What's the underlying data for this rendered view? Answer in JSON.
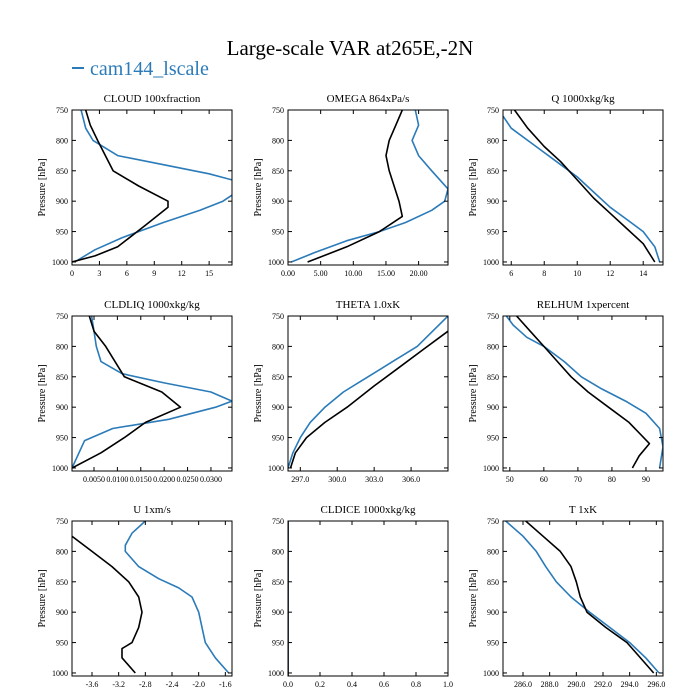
{
  "title": "Large-scale VAR at265E,-2N",
  "legend": {
    "label": "cam144_lscale",
    "color": "#2b7bb9"
  },
  "colors": {
    "cam144_lscale": "#2b7bb9",
    "black": "#000000"
  },
  "chart_data": [
    {
      "type": "line",
      "title": "CLOUD  100xfraction",
      "ylabel": "Pressure [hPa]",
      "ylim": [
        1005,
        750
      ],
      "yticks": [
        750,
        800,
        850,
        900,
        950,
        1000
      ],
      "xlim": [
        0,
        17.5
      ],
      "xticks": [
        0,
        3,
        6,
        9,
        12,
        15
      ],
      "xticklabels": [
        "0",
        "3",
        "6",
        "9",
        "12",
        "15"
      ],
      "series": [
        {
          "name": "cam144_lscale",
          "color": "#2b7bb9",
          "x": [
            1,
            1.5,
            2.3,
            5,
            10,
            15,
            17.5,
            18.5,
            16.5,
            14,
            10,
            5.5,
            2.5,
            0.3
          ],
          "y": [
            750,
            780,
            800,
            825,
            840,
            855,
            865,
            880,
            900,
            915,
            935,
            960,
            980,
            1000
          ]
        },
        {
          "name": "",
          "color": "#000000",
          "x": [
            1.5,
            2,
            2.8,
            4.5,
            7.3,
            10.5,
            10.5,
            8,
            5,
            2.5,
            0
          ],
          "y": [
            750,
            775,
            800,
            850,
            875,
            900,
            910,
            940,
            975,
            990,
            1000
          ]
        }
      ]
    },
    {
      "type": "line",
      "title": "OMEGA  864xPa/s",
      "ylabel": "Pressure [hPa]",
      "ylim": [
        1005,
        750
      ],
      "yticks": [
        750,
        800,
        850,
        900,
        950,
        1000
      ],
      "xlim": [
        0,
        24.5
      ],
      "xticks": [
        0,
        5,
        10,
        15,
        20
      ],
      "xticklabels": [
        "0.00",
        "5.00",
        "10.00",
        "15.00",
        "20.00"
      ],
      "series": [
        {
          "name": "cam144_lscale",
          "color": "#2b7bb9",
          "x": [
            19.5,
            20,
            19,
            20,
            22,
            24.5,
            24,
            22,
            18,
            14,
            9,
            4,
            0.5
          ],
          "y": [
            750,
            775,
            800,
            825,
            850,
            880,
            900,
            915,
            935,
            950,
            965,
            985,
            1000
          ]
        },
        {
          "name": "",
          "color": "#000000",
          "x": [
            17.5,
            16.5,
            15.5,
            15,
            15.5,
            17,
            17.5,
            14,
            9,
            3
          ],
          "y": [
            750,
            775,
            800,
            825,
            850,
            900,
            925,
            950,
            975,
            1000
          ]
        }
      ]
    },
    {
      "type": "line",
      "title": "Q  1000xkg/kg",
      "ylabel": "Pressure [hPa]",
      "ylim": [
        1005,
        750
      ],
      "yticks": [
        750,
        800,
        850,
        900,
        950,
        1000
      ],
      "xlim": [
        5.5,
        15.2
      ],
      "xticks": [
        6,
        8,
        10,
        12,
        14
      ],
      "xticklabels": [
        "6",
        "8",
        "10",
        "12",
        "14"
      ],
      "series": [
        {
          "name": "cam144_lscale",
          "color": "#2b7bb9",
          "x": [
            5.5,
            6,
            7,
            8,
            9,
            10,
            11,
            12,
            13,
            14,
            14.7,
            15
          ],
          "y": [
            760,
            780,
            800,
            820,
            840,
            860,
            885,
            910,
            930,
            950,
            975,
            1000
          ]
        },
        {
          "name": "",
          "color": "#000000",
          "x": [
            6.2,
            7,
            8,
            9,
            10,
            11,
            12,
            13,
            14,
            14.7
          ],
          "y": [
            750,
            780,
            810,
            835,
            865,
            895,
            920,
            945,
            970,
            1000
          ]
        }
      ]
    },
    {
      "type": "line",
      "title": "CLDLIQ  1000xkg/kg",
      "ylabel": "Pressure [hPa]",
      "ylim": [
        1005,
        750
      ],
      "yticks": [
        750,
        800,
        850,
        900,
        950,
        1000
      ],
      "xlim": [
        0.0003,
        0.0345
      ],
      "xticks": [
        0.005,
        0.01,
        0.015,
        0.02,
        0.025,
        0.03
      ],
      "xticklabels": [
        "0.0050",
        "0.0100",
        "0.0150",
        "0.0200",
        "0.0250",
        "0.0300"
      ],
      "series": [
        {
          "name": "cam144_lscale",
          "color": "#2b7bb9",
          "x": [
            0.0045,
            0.005,
            0.0055,
            0.0065,
            0.011,
            0.02,
            0.03,
            0.0345,
            0.031,
            0.021,
            0.009,
            0.003,
            0.0003
          ],
          "y": [
            750,
            775,
            800,
            825,
            845,
            860,
            875,
            890,
            900,
            920,
            935,
            955,
            1000
          ]
        },
        {
          "name": "",
          "color": "#000000",
          "x": [
            0.004,
            0.005,
            0.0075,
            0.0115,
            0.0195,
            0.0235,
            0.016,
            0.0115,
            0.0065,
            0.0003
          ],
          "y": [
            750,
            775,
            800,
            850,
            875,
            900,
            925,
            950,
            975,
            1000
          ]
        }
      ]
    },
    {
      "type": "line",
      "title": "THETA  1.0xK",
      "ylabel": "Pressure [hPa]",
      "ylim": [
        1005,
        750
      ],
      "yticks": [
        750,
        800,
        850,
        900,
        950,
        1000
      ],
      "xlim": [
        296,
        309
      ],
      "xticks": [
        297,
        300,
        303,
        306
      ],
      "xticklabels": [
        "297.0",
        "300.0",
        "303.0",
        "306.0"
      ],
      "series": [
        {
          "name": "cam144_lscale",
          "color": "#2b7bb9",
          "x": [
            296,
            296.4,
            297,
            297.8,
            299,
            300.5,
            302.5,
            304.5,
            306.5,
            309
          ],
          "y": [
            1000,
            975,
            950,
            925,
            900,
            875,
            850,
            825,
            800,
            750
          ]
        },
        {
          "name": "",
          "color": "#000000",
          "x": [
            296.2,
            296.6,
            297.5,
            299,
            300.8,
            303,
            305,
            307,
            309
          ],
          "y": [
            1000,
            975,
            950,
            925,
            900,
            865,
            835,
            805,
            775
          ]
        }
      ]
    },
    {
      "type": "line",
      "title": "RELHUM  1xpercent",
      "ylabel": "Pressure [hPa]",
      "ylim": [
        1005,
        750
      ],
      "yticks": [
        750,
        800,
        850,
        900,
        950,
        1000
      ],
      "xlim": [
        48,
        95
      ],
      "xticks": [
        50,
        60,
        70,
        80,
        90
      ],
      "xticklabels": [
        "50",
        "60",
        "70",
        "80",
        "90"
      ],
      "series": [
        {
          "name": "cam144_lscale",
          "color": "#2b7bb9",
          "x": [
            49,
            51,
            53,
            55,
            60,
            66,
            71,
            77,
            84,
            90,
            94,
            95,
            94
          ],
          "y": [
            750,
            765,
            775,
            785,
            800,
            825,
            850,
            870,
            890,
            910,
            935,
            965,
            1000
          ]
        },
        {
          "name": "",
          "color": "#000000",
          "x": [
            52,
            56,
            60,
            64,
            68,
            73,
            79,
            85,
            91,
            88,
            86
          ],
          "y": [
            750,
            775,
            800,
            825,
            850,
            875,
            900,
            925,
            960,
            980,
            1000
          ]
        }
      ]
    },
    {
      "type": "line",
      "title": "U  1xm/s",
      "ylabel": "Pressure [hPa]",
      "ylim": [
        1005,
        750
      ],
      "yticks": [
        750,
        800,
        850,
        900,
        950,
        1000
      ],
      "xlim": [
        -3.9,
        -1.5
      ],
      "xticks": [
        -3.6,
        -3.2,
        -2.8,
        -2.4,
        -2.0,
        -1.6
      ],
      "xticklabels": [
        "-3.6",
        "-3.2",
        "-2.8",
        "-2.4",
        "-2.0",
        "-1.6"
      ],
      "series": [
        {
          "name": "cam144_lscale",
          "color": "#2b7bb9",
          "x": [
            -2.8,
            -3.0,
            -3.1,
            -3.1,
            -2.9,
            -2.6,
            -2.3,
            -2.1,
            -2.0,
            -1.95,
            -1.9,
            -1.75,
            -1.55
          ],
          "y": [
            750,
            770,
            790,
            800,
            825,
            845,
            860,
            875,
            900,
            925,
            950,
            975,
            1000
          ]
        },
        {
          "name": "",
          "color": "#000000",
          "x": [
            -3.9,
            -3.6,
            -3.3,
            -3.05,
            -2.9,
            -2.85,
            -2.9,
            -3.0,
            -3.15,
            -3.15,
            -2.95
          ],
          "y": [
            775,
            800,
            825,
            850,
            875,
            900,
            925,
            950,
            960,
            975,
            1000
          ]
        }
      ]
    },
    {
      "type": "line",
      "title": "CLDICE  1000xkg/kg",
      "ylabel": "Pressure [hPa]",
      "ylim": [
        1005,
        750
      ],
      "yticks": [
        750,
        800,
        850,
        900,
        950,
        1000
      ],
      "xlim": [
        0,
        1
      ],
      "xticks": [
        0,
        0.2,
        0.4,
        0.6,
        0.8,
        1.0
      ],
      "xticklabels": [
        "0.0",
        "0.2",
        "0.4",
        "0.6",
        "0.8",
        "1.0"
      ],
      "series": [
        {
          "name": "cam144_lscale",
          "color": "#2b7bb9",
          "x": [
            0,
            0
          ],
          "y": [
            750,
            1005
          ]
        },
        {
          "name": "",
          "color": "#000000",
          "x": [
            0,
            0
          ],
          "y": [
            750,
            1005
          ]
        }
      ]
    },
    {
      "type": "line",
      "title": "T  1xK",
      "ylabel": "Pressure [hPa]",
      "ylim": [
        1005,
        750
      ],
      "yticks": [
        750,
        800,
        850,
        900,
        950,
        1000
      ],
      "xlim": [
        284.5,
        296.5
      ],
      "xticks": [
        286,
        288,
        290,
        292,
        294,
        296
      ],
      "xticklabels": [
        "286.0",
        "288.0",
        "290.0",
        "292.0",
        "294.0",
        "296.0"
      ],
      "series": [
        {
          "name": "cam144_lscale",
          "color": "#2b7bb9",
          "x": [
            284.7,
            286,
            287,
            287.7,
            288.5,
            289.6,
            291,
            292.5,
            294,
            295.2,
            296.2
          ],
          "y": [
            750,
            775,
            800,
            825,
            850,
            875,
            900,
            925,
            950,
            975,
            1000
          ]
        },
        {
          "name": "",
          "color": "#000000",
          "x": [
            286.2,
            287.5,
            288.8,
            289.6,
            290,
            290.3,
            290.8,
            292.2,
            293.8,
            295.8
          ],
          "y": [
            750,
            775,
            800,
            825,
            850,
            875,
            900,
            925,
            950,
            1000
          ]
        }
      ]
    }
  ]
}
